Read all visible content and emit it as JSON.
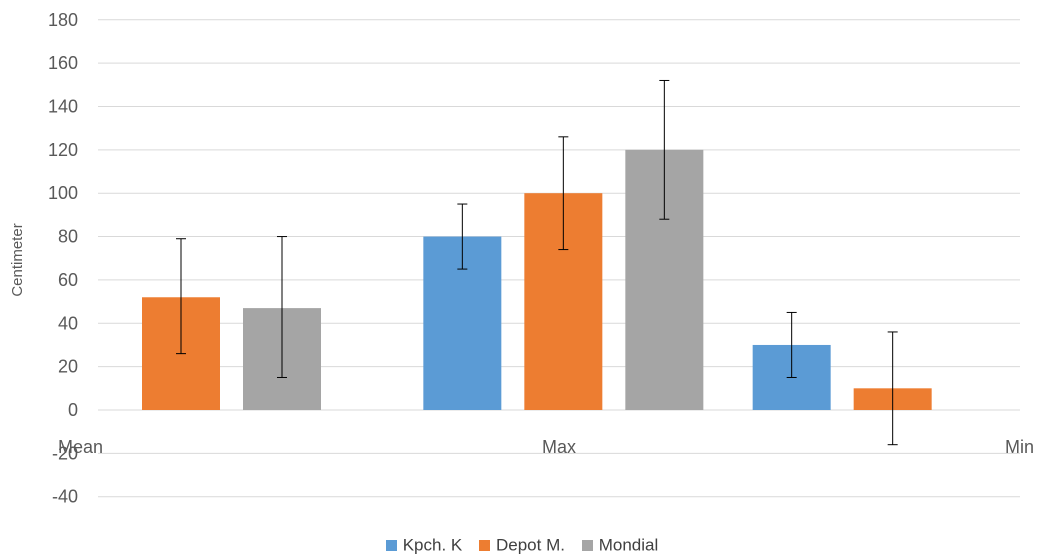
{
  "chart_data": {
    "type": "bar",
    "title": "",
    "xlabel": "",
    "ylabel": "Centimeter",
    "ylim": [
      -40,
      180
    ],
    "yticks": [
      -40,
      -20,
      0,
      20,
      40,
      60,
      80,
      100,
      120,
      140,
      160,
      180
    ],
    "grid": true,
    "legend_position": "bottom",
    "categories": [
      "Mean",
      "Max",
      "Min"
    ],
    "series": [
      {
        "name": "Kpch. K",
        "color": "#5B9BD5",
        "values": [
          null,
          80,
          30
        ],
        "err_low": [
          null,
          65,
          15
        ],
        "err_high": [
          null,
          95,
          45
        ]
      },
      {
        "name": "Depot M.",
        "color": "#ED7D31",
        "values": [
          52,
          100,
          10
        ],
        "err_low": [
          26,
          74,
          -16
        ],
        "err_high": [
          79,
          126,
          36
        ]
      },
      {
        "name": "Mondial",
        "color": "#A5A5A5",
        "values": [
          47,
          120,
          null
        ],
        "err_low": [
          15,
          88,
          null
        ],
        "err_high": [
          80,
          152,
          null
        ]
      }
    ]
  }
}
